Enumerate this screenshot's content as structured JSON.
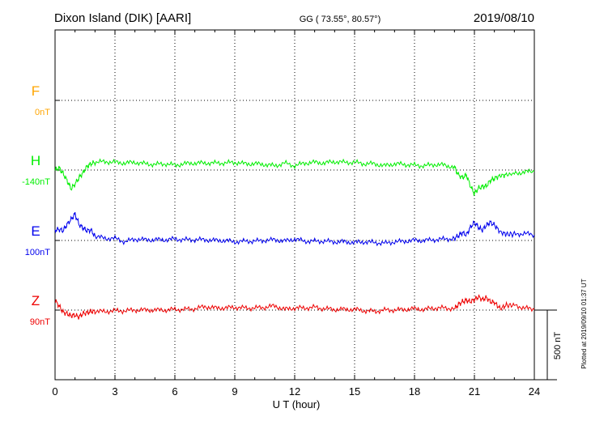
{
  "header": {
    "station": "Dixon Island (DIK)  [AARI]",
    "coords": "GG ( 73.55°,  80.57°)",
    "date": "2019/08/10"
  },
  "chart_data": {
    "type": "line",
    "xlabel": "U T (hour)",
    "xlim": [
      0,
      24
    ],
    "xticks": [
      0,
      3,
      6,
      9,
      12,
      15,
      18,
      21,
      24
    ],
    "xtick_labels": [
      "0",
      "3",
      "6",
      "9",
      "12",
      "15",
      "18",
      "21",
      "24"
    ],
    "scale_label": "500 nT",
    "scale_nT": 500,
    "series": [
      {
        "name": "F",
        "baseline_label": "0nT",
        "color": "#ffa500",
        "x": [],
        "y": []
      },
      {
        "name": "H",
        "baseline_label": "-140nT",
        "color": "#00ee00",
        "x": [
          0,
          0.2,
          0.4,
          0.6,
          0.8,
          1.0,
          1.2,
          1.4,
          1.6,
          1.8,
          2.0,
          2.5,
          3.0,
          3.5,
          4.0,
          4.5,
          5.0,
          5.5,
          6.0,
          6.5,
          7.0,
          7.5,
          8.0,
          8.5,
          9.0,
          9.5,
          10.0,
          10.5,
          11.0,
          11.5,
          12.0,
          12.5,
          13.0,
          13.5,
          14.0,
          14.5,
          15.0,
          15.5,
          16.0,
          16.5,
          17.0,
          17.5,
          18.0,
          18.5,
          19.0,
          19.5,
          20.0,
          20.2,
          20.4,
          20.6,
          20.8,
          21.0,
          21.2,
          21.4,
          21.6,
          21.8,
          22.0,
          22.3,
          22.6,
          23.0,
          23.5,
          24.0
        ],
        "y": [
          0,
          15,
          -25,
          -75,
          -135,
          -100,
          -55,
          -20,
          25,
          45,
          55,
          60,
          55,
          50,
          55,
          45,
          40,
          45,
          35,
          45,
          50,
          50,
          50,
          50,
          55,
          45,
          45,
          40,
          30,
          50,
          30,
          50,
          55,
          50,
          60,
          55,
          55,
          45,
          45,
          30,
          45,
          40,
          35,
          30,
          40,
          35,
          20,
          -35,
          -55,
          -35,
          -115,
          -170,
          -130,
          -120,
          -115,
          -75,
          -60,
          -40,
          -35,
          -25,
          -15,
          -10
        ]
      },
      {
        "name": "E",
        "baseline_label": "100nT",
        "color": "#0000ee",
        "x": [
          0,
          0.2,
          0.4,
          0.6,
          0.8,
          1.0,
          1.2,
          1.4,
          1.6,
          1.8,
          2.0,
          2.5,
          3.0,
          3.5,
          4.0,
          4.5,
          5.0,
          5.5,
          6.0,
          6.5,
          7.0,
          7.5,
          8.0,
          8.5,
          9.0,
          9.5,
          10.0,
          10.5,
          11.0,
          11.5,
          12.0,
          12.5,
          13.0,
          13.5,
          14.0,
          14.5,
          15.0,
          15.5,
          16.0,
          16.5,
          17.0,
          17.5,
          18.0,
          18.5,
          19.0,
          19.5,
          20.0,
          20.2,
          20.4,
          20.6,
          20.8,
          21.0,
          21.2,
          21.4,
          21.6,
          21.8,
          22.0,
          22.3,
          22.6,
          23.0,
          23.5,
          24.0
        ],
        "y": [
          75,
          80,
          70,
          115,
          150,
          190,
          115,
          90,
          70,
          75,
          30,
          15,
          15,
          -10,
          10,
          5,
          5,
          5,
          10,
          5,
          5,
          5,
          0,
          0,
          -10,
          -5,
          -5,
          0,
          5,
          -5,
          10,
          -5,
          -5,
          -5,
          -10,
          -10,
          -15,
          -10,
          -15,
          -20,
          -10,
          -5,
          0,
          0,
          5,
          10,
          15,
          35,
          55,
          40,
          95,
          130,
          95,
          75,
          110,
          130,
          110,
          60,
          45,
          45,
          50,
          40
        ]
      },
      {
        "name": "Z",
        "baseline_label": "90nT",
        "color": "#ee0000",
        "x": [
          0,
          0.2,
          0.4,
          0.6,
          0.8,
          1.0,
          1.2,
          1.4,
          1.6,
          1.8,
          2.0,
          2.5,
          3.0,
          3.5,
          4.0,
          4.5,
          5.0,
          5.5,
          6.0,
          6.5,
          7.0,
          7.5,
          8.0,
          8.5,
          9.0,
          9.5,
          10.0,
          10.5,
          11.0,
          11.5,
          12.0,
          12.5,
          13.0,
          13.5,
          14.0,
          14.5,
          15.0,
          15.5,
          16.0,
          16.5,
          17.0,
          17.5,
          18.0,
          18.5,
          19.0,
          19.5,
          20.0,
          20.2,
          20.4,
          20.6,
          20.8,
          21.0,
          21.2,
          21.4,
          21.6,
          21.8,
          22.0,
          22.3,
          22.6,
          23.0,
          23.5,
          24.0
        ],
        "y": [
          70,
          30,
          -15,
          -25,
          -40,
          -35,
          -50,
          -25,
          -20,
          -10,
          -10,
          -10,
          -5,
          -5,
          0,
          0,
          0,
          0,
          5,
          5,
          10,
          25,
          15,
          15,
          20,
          15,
          15,
          20,
          30,
          5,
          15,
          15,
          20,
          10,
          5,
          5,
          5,
          -5,
          -10,
          0,
          0,
          5,
          10,
          5,
          15,
          15,
          10,
          40,
          60,
          70,
          60,
          75,
          95,
          75,
          90,
          60,
          55,
          10,
          35,
          35,
          15,
          5
        ]
      }
    ]
  },
  "side_note": "Plotted at 2019/09/10 01:37 UT"
}
